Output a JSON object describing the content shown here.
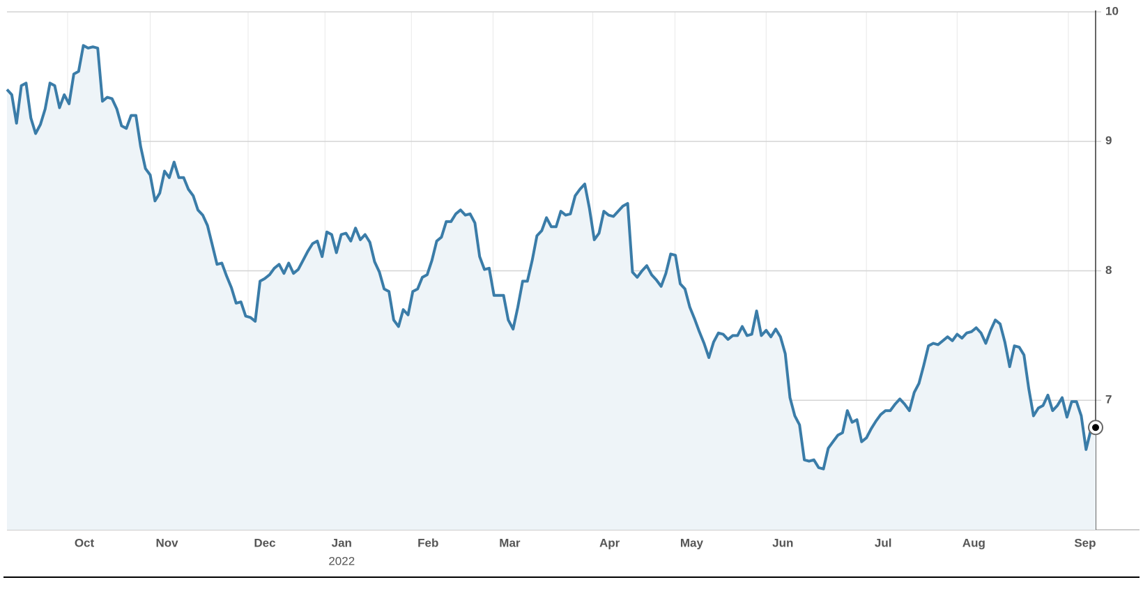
{
  "chart_data": {
    "type": "line",
    "values": [
      9.4,
      9.36,
      9.14,
      9.43,
      9.45,
      9.18,
      9.06,
      9.13,
      9.25,
      9.45,
      9.43,
      9.26,
      9.36,
      9.29,
      9.52,
      9.54,
      9.74,
      9.72,
      9.73,
      9.72,
      9.31,
      9.34,
      9.33,
      9.25,
      9.12,
      9.1,
      9.2,
      9.2,
      8.96,
      8.79,
      8.74,
      8.54,
      8.6,
      8.77,
      8.72,
      8.84,
      8.72,
      8.72,
      8.63,
      8.58,
      8.47,
      8.43,
      8.35,
      8.2,
      8.05,
      8.06,
      7.96,
      7.87,
      7.75,
      7.76,
      7.65,
      7.64,
      7.61,
      7.92,
      7.94,
      7.97,
      8.02,
      8.05,
      7.98,
      8.06,
      7.98,
      8.01,
      8.08,
      8.15,
      8.21,
      8.23,
      8.11,
      8.3,
      8.28,
      8.14,
      8.28,
      8.29,
      8.23,
      8.33,
      8.24,
      8.28,
      8.22,
      8.07,
      7.99,
      7.86,
      7.84,
      7.62,
      7.57,
      7.7,
      7.66,
      7.84,
      7.86,
      7.95,
      7.97,
      8.08,
      8.23,
      8.26,
      8.38,
      8.38,
      8.44,
      8.47,
      8.43,
      8.44,
      8.37,
      8.11,
      8.01,
      8.02,
      7.81,
      7.81,
      7.81,
      7.62,
      7.55,
      7.72,
      7.92,
      7.92,
      8.08,
      8.27,
      8.31,
      8.41,
      8.34,
      8.34,
      8.46,
      8.43,
      8.44,
      8.58,
      8.63,
      8.67,
      8.48,
      8.24,
      8.29,
      8.46,
      8.43,
      8.42,
      8.46,
      8.5,
      8.52,
      7.99,
      7.95,
      8.0,
      8.04,
      7.97,
      7.93,
      7.88,
      7.98,
      8.13,
      8.12,
      7.9,
      7.86,
      7.72,
      7.63,
      7.53,
      7.44,
      7.33,
      7.45,
      7.52,
      7.51,
      7.47,
      7.5,
      7.5,
      7.57,
      7.5,
      7.51,
      7.69,
      7.5,
      7.54,
      7.49,
      7.55,
      7.49,
      7.36,
      7.02,
      6.88,
      6.81,
      6.54,
      6.53,
      6.54,
      6.48,
      6.47,
      6.63,
      6.68,
      6.73,
      6.75,
      6.92,
      6.83,
      6.85,
      6.68,
      6.71,
      6.78,
      6.84,
      6.89,
      6.92,
      6.92,
      6.97,
      7.01,
      6.97,
      6.92,
      7.06,
      7.13,
      7.27,
      7.42,
      7.44,
      7.43,
      7.46,
      7.49,
      7.46,
      7.51,
      7.48,
      7.52,
      7.53,
      7.56,
      7.52,
      7.44,
      7.54,
      7.62,
      7.59,
      7.45,
      7.26,
      7.42,
      7.41,
      7.35,
      7.09,
      6.88,
      6.94,
      6.96,
      7.04,
      6.92,
      6.96,
      7.02,
      6.87,
      6.99,
      6.99,
      6.88,
      6.62,
      6.77,
      6.79
    ],
    "color": "#3a7ca8",
    "xlim": [
      0,
      228
    ],
    "xticks": [
      {
        "value": 12.7,
        "label": "Oct"
      },
      {
        "value": 30,
        "label": "Nov"
      },
      {
        "value": 50.5,
        "label": "Dec"
      },
      {
        "value": 66.6,
        "label": "Jan"
      },
      {
        "value": 84.7,
        "label": "Feb"
      },
      {
        "value": 101.8,
        "label": "Mar"
      },
      {
        "value": 122.7,
        "label": "Apr"
      },
      {
        "value": 139.9,
        "label": "May"
      },
      {
        "value": 159,
        "label": "Jun"
      },
      {
        "value": 180,
        "label": "Jul"
      },
      {
        "value": 199,
        "label": "Aug"
      },
      {
        "value": 222.3,
        "label": "Sep"
      }
    ],
    "year_label": "2022",
    "ylim": [
      6,
      10
    ],
    "yticks": [
      7,
      8,
      9,
      10
    ],
    "grid": true
  }
}
